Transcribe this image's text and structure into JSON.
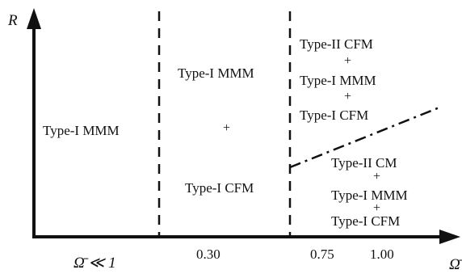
{
  "axes": {
    "y_label": "R",
    "x_label": "Ω̄",
    "x_ticks": [
      "Ω̄ ≪ 1",
      "0.30",
      "0.75",
      "1.00"
    ]
  },
  "regions": {
    "left": {
      "label": "Type-I MMM"
    },
    "middle": {
      "top": "Type-I MMM",
      "plus": "+",
      "bottom": "Type-I CFM"
    },
    "upper_right": {
      "lines": [
        "Type-II CFM",
        "+",
        "Type-I MMM",
        "+",
        "Type-I CFM"
      ]
    },
    "lower_right": {
      "lines": [
        "Type-II CM",
        "+",
        "Type-I MMM",
        "+",
        "Type-I CFM"
      ]
    }
  },
  "colors": {
    "ink": "#111111",
    "background": "#ffffff"
  }
}
